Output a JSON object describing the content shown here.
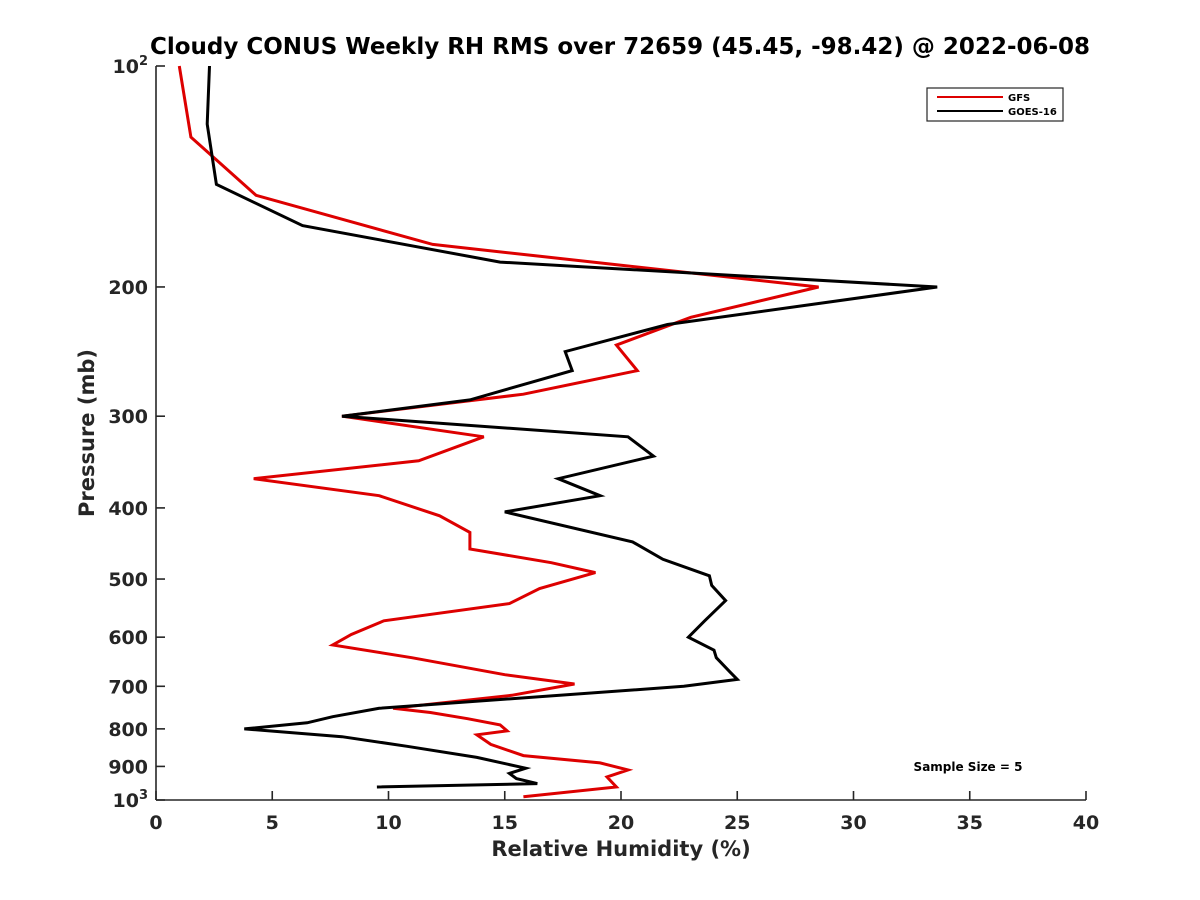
{
  "chart_data": {
    "type": "line",
    "title": "Cloudy CONUS Weekly RH RMS over 72659 (45.45, -98.42) @ 2022-06-08",
    "xlabel": "Relative Humidity (%)",
    "ylabel": "Pressure (mb)",
    "xlim": [
      0,
      40
    ],
    "ylim": [
      100,
      1000
    ],
    "y_scale": "log",
    "y_reversed": true,
    "x_ticks": [
      "0",
      "5",
      "10",
      "15",
      "20",
      "25",
      "30",
      "35",
      "40"
    ],
    "x_tick_values": [
      0,
      5,
      10,
      15,
      20,
      25,
      30,
      35,
      40
    ],
    "y_tick_values": [
      100,
      200,
      300,
      400,
      500,
      600,
      700,
      800,
      900,
      1000
    ],
    "y_ticks_plain": [
      "200",
      "300",
      "400",
      "500",
      "600",
      "700",
      "800",
      "900"
    ],
    "y_tick_top": {
      "base": "10",
      "exp": "2"
    },
    "y_tick_bottom": {
      "base": "10",
      "exp": "3"
    },
    "grid": false,
    "legend_position": "top-right",
    "annotation": "Sample Size = 5",
    "series": [
      {
        "name": "GFS",
        "color": "#dd0000",
        "x": [
          1.0,
          1.5,
          4.3,
          11.9,
          28.5,
          23.0,
          19.8,
          20.7,
          15.8,
          8.0,
          14.1,
          11.3,
          4.2,
          9.6,
          12.2,
          13.5,
          13.5,
          17.0,
          18.9,
          16.5,
          15.2,
          9.8,
          8.4,
          7.6,
          11.0,
          15.0,
          18.0,
          15.3,
          10.2,
          11.8,
          13.4,
          14.8,
          15.1,
          13.8,
          14.4,
          15.8,
          19.1,
          20.3,
          19.4,
          19.6,
          19.8,
          15.8
        ],
        "y": [
          100,
          125,
          150,
          175,
          200,
          220,
          240,
          260,
          280,
          300,
          320,
          345,
          365,
          385,
          410,
          432,
          455,
          475,
          490,
          515,
          540,
          570,
          595,
          615,
          640,
          675,
          695,
          720,
          750,
          760,
          775,
          790,
          805,
          815,
          840,
          870,
          890,
          910,
          930,
          945,
          960,
          990
        ]
      },
      {
        "name": "GOES-16",
        "color": "#000000",
        "x": [
          2.3,
          2.2,
          2.6,
          6.3,
          14.8,
          33.6,
          22.0,
          17.6,
          17.9,
          13.5,
          8.0,
          20.3,
          21.4,
          17.3,
          19.1,
          15.0,
          20.5,
          21.8,
          23.8,
          23.9,
          24.5,
          23.6,
          22.9,
          24.0,
          24.1,
          24.7,
          25.0,
          22.7,
          9.6,
          7.6,
          6.5,
          3.8,
          8.0,
          10.8,
          13.8,
          15.9,
          15.2,
          15.5,
          16.4,
          9.5
        ],
        "y": [
          100,
          120,
          145,
          165,
          185,
          200,
          225,
          245,
          260,
          285,
          300,
          320,
          340,
          365,
          385,
          405,
          445,
          470,
          495,
          510,
          535,
          570,
          600,
          625,
          640,
          670,
          685,
          700,
          750,
          770,
          785,
          800,
          820,
          845,
          875,
          905,
          920,
          935,
          950,
          960
        ]
      }
    ]
  }
}
